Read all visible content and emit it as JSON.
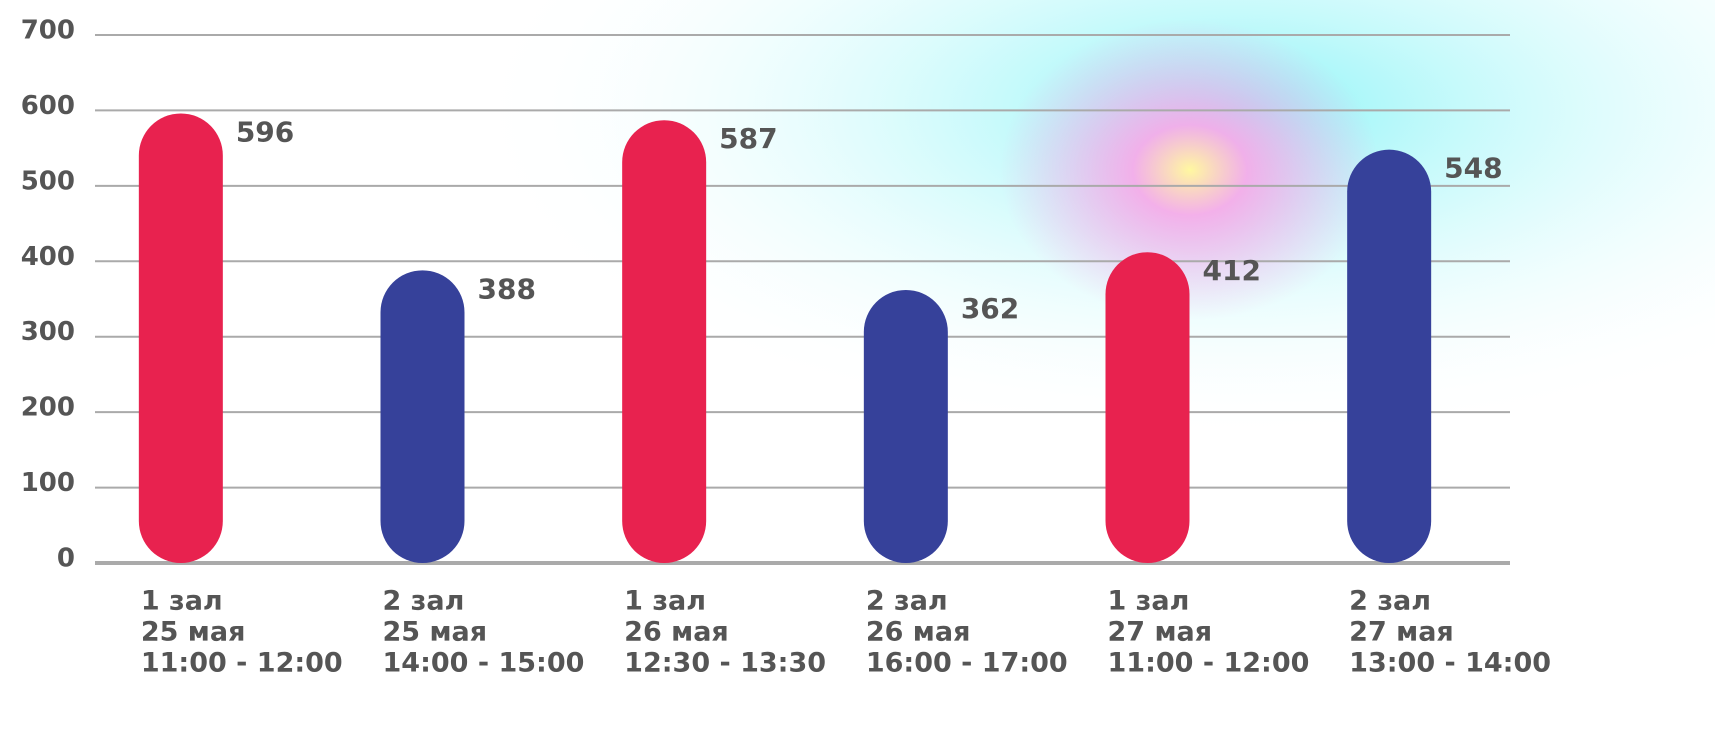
{
  "chart_data": {
    "type": "bar",
    "categories": [
      [
        "1 зал",
        "25 мая",
        "11:00 - 12:00"
      ],
      [
        "2 зал",
        "25 мая",
        "14:00 - 15:00"
      ],
      [
        "1 зал",
        "26 мая",
        "12:30 - 13:30"
      ],
      [
        "2 зал",
        "26 мая",
        "16:00 - 17:00"
      ],
      [
        "1 зал",
        "27 мая",
        "11:00 - 12:00"
      ],
      [
        "2 зал",
        "27 мая",
        "13:00 - 14:00"
      ]
    ],
    "values": [
      596,
      388,
      587,
      362,
      412,
      548
    ],
    "colors": [
      "#e8224f",
      "#36419a",
      "#e8224f",
      "#36419a",
      "#e8224f",
      "#36419a"
    ],
    "ylim": [
      0,
      700
    ],
    "yticks": [
      0,
      100,
      200,
      300,
      400,
      500,
      600,
      700
    ],
    "grid": true
  }
}
